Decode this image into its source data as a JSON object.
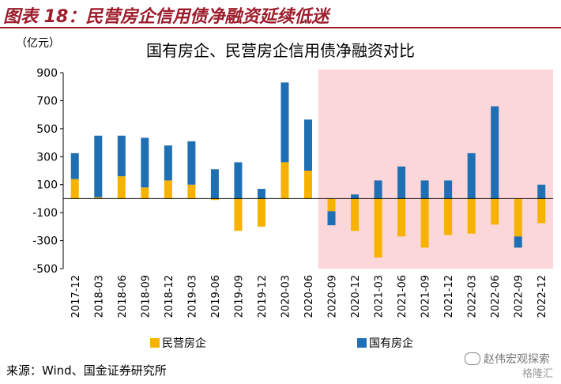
{
  "header": {
    "title": "图表 18：民营房企信用债净融资延续低迷"
  },
  "unit_label": "（亿元）",
  "source_text": "来源：Wind、国金证券研究所",
  "watermark": {
    "text": "赵伟宏观探索",
    "sub": "格隆汇"
  },
  "colors": {
    "private": "#f7b200",
    "state": "#1f6fb5",
    "highlight": "#fbd7d9",
    "header": "#9d1c2b"
  },
  "chart_data": {
    "type": "bar",
    "stacked": true,
    "title": "国有房企、民营房企信用债净融资对比",
    "ylim": [
      -500,
      900
    ],
    "yticks": [
      900,
      700,
      500,
      300,
      100,
      -100,
      -300,
      -500
    ],
    "categories": [
      "2017-12",
      "2018-03",
      "2018-06",
      "2018-09",
      "2018-12",
      "2019-03",
      "2019-06",
      "2019-09",
      "2019-12",
      "2020-03",
      "2020-06",
      "2020-09",
      "2020-12",
      "2021-03",
      "2021-06",
      "2021-09",
      "2021-12",
      "2022-03",
      "2022-06",
      "2022-09",
      "2022-12"
    ],
    "series": [
      {
        "name": "民营房企",
        "values": [
          140,
          10,
          160,
          80,
          130,
          100,
          -10,
          -230,
          -200,
          260,
          200,
          -90,
          -230,
          -420,
          -270,
          -350,
          -260,
          -250,
          -185,
          -270,
          -175
        ]
      },
      {
        "name": "国有房企",
        "values": [
          185,
          440,
          290,
          355,
          250,
          310,
          210,
          260,
          70,
          570,
          365,
          -100,
          30,
          130,
          230,
          130,
          130,
          325,
          660,
          -80,
          100
        ]
      }
    ],
    "highlight_from_index": 11,
    "legend_position": "bottom"
  }
}
